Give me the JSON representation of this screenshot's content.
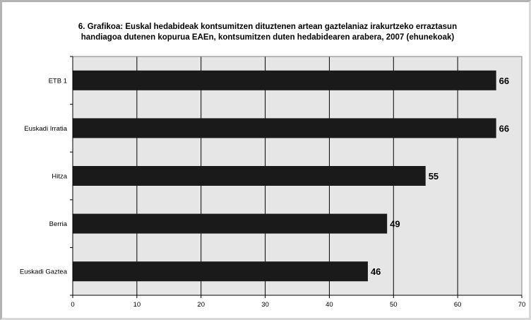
{
  "chart_data": {
    "type": "bar",
    "orientation": "horizontal",
    "title_line1": "6. Grafikoa: Euskal hedabideak kontsumitzen dituztenen artean gaztelaniaz irakurtzeko erraztasun",
    "title_line2": "handiagoa dutenen kopurua EAEn, kontsumitzen duten hedabidearen arabera, 2007 (ehunekoak)",
    "categories": [
      "ETB 1",
      "Euskadi Irratia",
      "Hitza",
      "Berria",
      "Euskadi Gaztea"
    ],
    "values": [
      66,
      66,
      55,
      49,
      46
    ],
    "data_labels": [
      "66",
      "66",
      "55",
      "49",
      "46"
    ],
    "xlim": [
      0,
      70
    ],
    "x_ticks": [
      "0",
      "10",
      "20",
      "30",
      "40",
      "50",
      "60",
      "70"
    ],
    "grid": "vertical",
    "legend": "none",
    "colors": {
      "bar": "#1a1a1a",
      "plot_background": "#e6e6e6",
      "gridline": "#000000"
    }
  }
}
